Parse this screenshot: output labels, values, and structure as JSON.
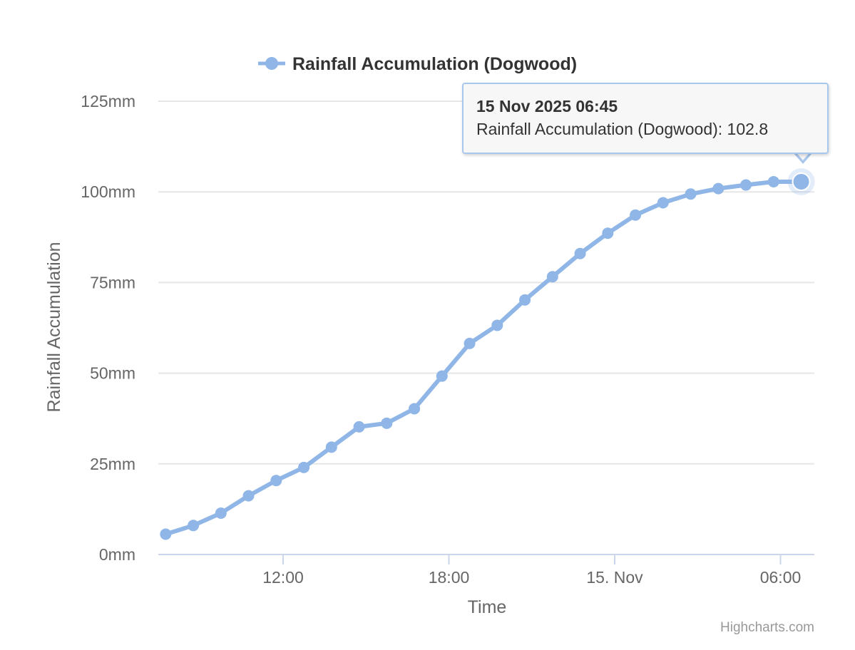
{
  "chart_data": {
    "type": "line",
    "xlabel": "Time",
    "ylabel": "Rainfall Accumulation",
    "ylim": [
      0,
      125
    ],
    "y_ticks": [
      "0mm",
      "25mm",
      "50mm",
      "75mm",
      "100mm",
      "125mm"
    ],
    "x_ticks": [
      {
        "label": "12:00",
        "time": "2025-11-14 12:00"
      },
      {
        "label": "18:00",
        "time": "2025-11-14 18:00"
      },
      {
        "label": "15. Nov",
        "time": "2025-11-15 00:00"
      },
      {
        "label": "06:00",
        "time": "2025-11-15 06:00"
      }
    ],
    "grid": true,
    "legend_position": "top",
    "series": [
      {
        "name": "Rainfall Accumulation (Dogwood)",
        "color": "#8fb6e6",
        "x": [
          "2025-11-14 07:45",
          "2025-11-14 08:45",
          "2025-11-14 09:45",
          "2025-11-14 10:45",
          "2025-11-14 11:45",
          "2025-11-14 12:45",
          "2025-11-14 13:45",
          "2025-11-14 14:45",
          "2025-11-14 15:45",
          "2025-11-14 16:45",
          "2025-11-14 17:45",
          "2025-11-14 18:45",
          "2025-11-14 19:45",
          "2025-11-14 20:45",
          "2025-11-14 21:45",
          "2025-11-14 22:45",
          "2025-11-14 23:45",
          "2025-11-15 00:45",
          "2025-11-15 01:45",
          "2025-11-15 02:45",
          "2025-11-15 03:45",
          "2025-11-15 04:45",
          "2025-11-15 05:45",
          "2025-11-15 06:45"
        ],
        "values": [
          5.6,
          8.0,
          11.4,
          16.2,
          20.4,
          24.0,
          29.6,
          35.2,
          36.2,
          40.2,
          49.2,
          58.2,
          63.2,
          70.2,
          76.6,
          83.0,
          88.6,
          93.6,
          97.0,
          99.4,
          100.9,
          101.9,
          102.8,
          102.8
        ]
      }
    ],
    "tooltip": {
      "title": "15 Nov 2025 06:45",
      "text": "Rainfall Accumulation (Dogwood): 102.8"
    },
    "credits": "Highcharts.com"
  }
}
